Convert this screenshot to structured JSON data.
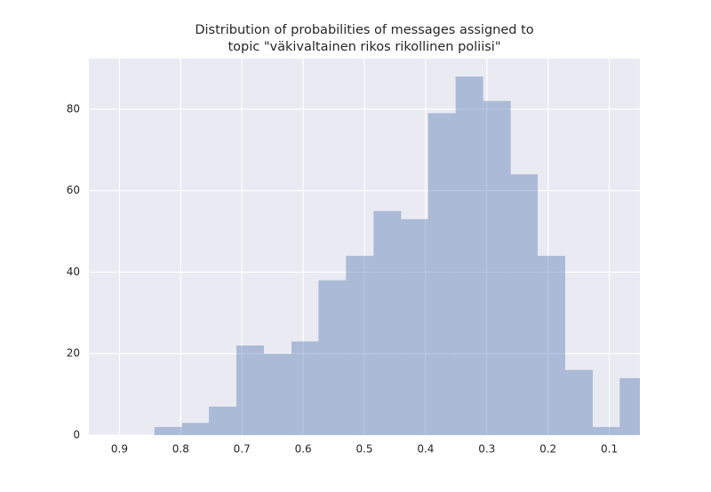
{
  "chart_data": {
    "type": "histogram",
    "title": [
      "Distribution of probabilities of messages assigned to",
      "topic \"väkivaltainen rikos rikollinen poliisi\""
    ],
    "bins": [
      0.038,
      0.083,
      0.127,
      0.172,
      0.217,
      0.261,
      0.306,
      0.351,
      0.396,
      0.44,
      0.485,
      0.53,
      0.575,
      0.619,
      0.664,
      0.709,
      0.754,
      0.798,
      0.843
    ],
    "values": [
      14,
      2,
      16,
      44,
      64,
      82,
      88,
      79,
      53,
      55,
      44,
      38,
      23,
      20,
      22,
      7,
      3,
      2
    ],
    "color": "#4c72b0",
    "opacity": 0.4,
    "background": "#eaeaf2",
    "grid": true,
    "xlim": [
      0.95,
      0.05
    ],
    "xticks": [
      0.9,
      0.8,
      0.7,
      0.6,
      0.5,
      0.4,
      0.3,
      0.2,
      0.1
    ],
    "ylim": [
      0,
      92.4
    ],
    "yticks": [
      0,
      20,
      40,
      60,
      80
    ]
  }
}
